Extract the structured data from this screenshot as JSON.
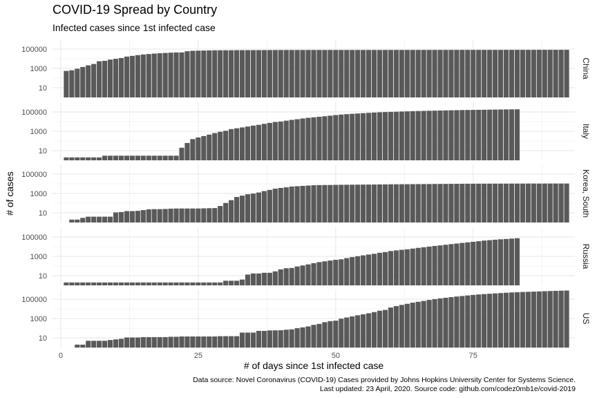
{
  "title": "COVID-19 Spread by Country",
  "subtitle": "Infected cases since 1st infected case",
  "caption": {
    "line1": "Data source: Novel Coronavirus (COVID-19) Cases provided by Johns Hopkins University Center for Systems Science.",
    "line2": "Last updated: 23 April, 2020. Source code: github.com/codez0mb1e/covid-2019"
  },
  "chart_data": {
    "type": "bar",
    "facet": "rows by country",
    "xlabel": "# of days since 1st infected case",
    "ylabel": "# of cases",
    "y_scale": "log10",
    "xlim": [
      -1.5,
      93.5
    ],
    "ylim": [
      1,
      1000000
    ],
    "x_ticks": [
      0,
      25,
      50,
      75
    ],
    "y_ticks": [
      10,
      1000,
      100000
    ],
    "grid": true,
    "bar_color": "#595959",
    "panels": [
      {
        "name": "China",
        "start_day": 1,
        "values": [
          548,
          643,
          920,
          1406,
          2075,
          2877,
          5509,
          6087,
          8141,
          9802,
          11891,
          16630,
          19716,
          23707,
          27440,
          30587,
          34110,
          36814,
          39829,
          42354,
          44386,
          44759,
          59895,
          66358,
          68413,
          70513,
          72434,
          74211,
          74619,
          75077,
          75550,
          77001,
          77022,
          77241,
          77754,
          78166,
          78600,
          78928,
          79356,
          79932,
          80136,
          80261,
          80386,
          80537,
          80690,
          80770,
          80823,
          80860,
          80887,
          80921,
          80932,
          80945,
          80977,
          81003,
          81033,
          81058,
          81102,
          81156,
          81250,
          81305,
          81435,
          81498,
          81591,
          81661,
          81782,
          81897,
          81999,
          82122,
          82198,
          82279,
          82361,
          82432,
          82511,
          82543,
          82602,
          82665,
          82718,
          82809,
          82883,
          82941,
          83014,
          83134,
          83213,
          83306,
          83356,
          83403,
          83760,
          83787,
          83805,
          83817,
          83853,
          83868
        ]
      },
      {
        "name": "Italy",
        "start_day": 1,
        "values": [
          2,
          2,
          2,
          2,
          2,
          2,
          2,
          3,
          3,
          3,
          3,
          3,
          3,
          3,
          3,
          3,
          3,
          3,
          3,
          3,
          3,
          20,
          62,
          155,
          229,
          322,
          453,
          655,
          888,
          1128,
          1694,
          2036,
          2502,
          3089,
          3858,
          4636,
          5883,
          7375,
          9172,
          10149,
          12462,
          15113,
          17660,
          21157,
          24747,
          27980,
          31506,
          35713,
          41035,
          47021,
          53578,
          59138,
          63927,
          69176,
          74386,
          80589,
          86498,
          92472,
          97689,
          101739,
          105792,
          110574,
          115242,
          119827,
          124632,
          128948,
          132547,
          135586,
          139422,
          143626,
          147577,
          152271,
          156363,
          159516,
          162488,
          165155,
          168941,
          172434,
          175925,
          178972,
          181228,
          183957,
          187327
        ]
      },
      {
        "name": "Korea, South",
        "start_day": 1,
        "values": [
          1,
          2,
          2,
          3,
          4,
          4,
          4,
          4,
          4,
          11,
          12,
          15,
          15,
          16,
          19,
          23,
          24,
          24,
          25,
          27,
          28,
          28,
          28,
          28,
          28,
          29,
          30,
          31,
          51,
          104,
          204,
          433,
          602,
          833,
          977,
          1261,
          1766,
          2337,
          3150,
          3736,
          4335,
          5186,
          5621,
          6088,
          6593,
          7041,
          7314,
          7478,
          7513,
          7755,
          7869,
          7979,
          8086,
          8162,
          8236,
          8320,
          8413,
          8565,
          8652,
          8799,
          8897,
          8961,
          9037,
          9137,
          9241,
          9332,
          9478,
          9583,
          9661,
          9786,
          9887,
          9976,
          10062,
          10156,
          10237,
          10284,
          10331,
          10384,
          10423,
          10450,
          10480,
          10512,
          10537,
          10564,
          10591,
          10613,
          10635,
          10653,
          10661,
          10674,
          10683,
          10694
        ]
      },
      {
        "name": "Russia",
        "start_day": 1,
        "values": [
          2,
          2,
          2,
          2,
          2,
          2,
          2,
          2,
          2,
          2,
          2,
          2,
          2,
          2,
          2,
          2,
          2,
          2,
          2,
          2,
          2,
          2,
          2,
          2,
          2,
          2,
          2,
          2,
          2,
          3,
          3,
          3,
          4,
          13,
          17,
          17,
          20,
          20,
          28,
          45,
          59,
          63,
          90,
          114,
          147,
          199,
          253,
          306,
          367,
          438,
          495,
          658,
          840,
          1036,
          1264,
          1534,
          1836,
          2337,
          2777,
          3548,
          4149,
          4731,
          5389,
          6343,
          7497,
          8672,
          10131,
          11917,
          13584,
          15770,
          18328,
          21102,
          24490,
          27938,
          32008,
          36793,
          42853,
          47121,
          52763,
          57999,
          62773,
          68622,
          74588
        ]
      },
      {
        "name": "US",
        "start_day": 1,
        "values": [
          1,
          1,
          2,
          2,
          5,
          5,
          5,
          5,
          6,
          7,
          8,
          11,
          11,
          11,
          12,
          12,
          12,
          12,
          12,
          13,
          13,
          14,
          14,
          14,
          14,
          14,
          14,
          14,
          15,
          15,
          15,
          15,
          35,
          35,
          35,
          53,
          53,
          59,
          60,
          62,
          70,
          76,
          101,
          122,
          153,
          221,
          278,
          417,
          537,
          605,
          959,
          1281,
          1663,
          2179,
          2727,
          3499,
          4632,
          6421,
          7783,
          13747,
          19273,
          25600,
          33276,
          43847,
          53740,
          65778,
          83836,
          101657,
          121465,
          140909,
          161831,
          188172,
          213242,
          243622,
          275367,
          308650,
          336802,
          366317,
          397121,
          428654,
          462780,
          496535,
          526396,
          555313,
          580619,
          607670,
          636350,
          667801,
          699706,
          732197,
          758809,
          784326
        ]
      }
    ]
  }
}
